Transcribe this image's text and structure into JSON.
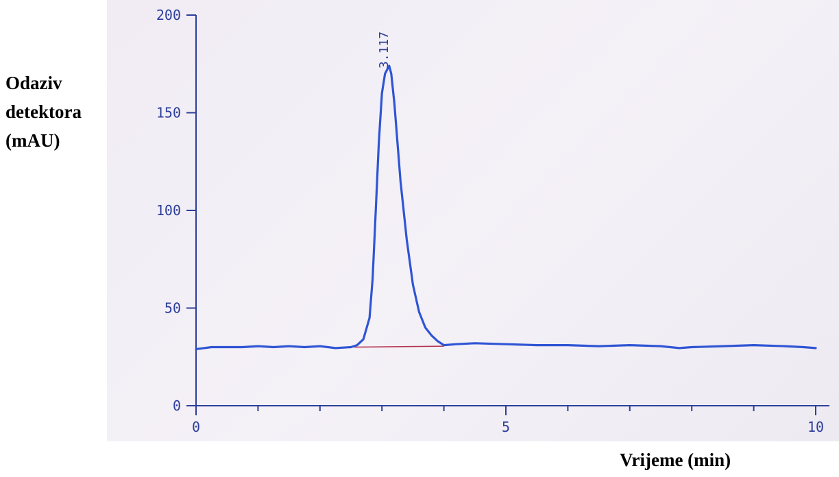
{
  "chart_data": {
    "type": "line",
    "ylabel_lines": [
      "Odaziv",
      "detektora",
      "(mAU)"
    ],
    "xlabel": "Vrijeme (min)",
    "xlim": [
      0,
      10
    ],
    "ylim": [
      0,
      200
    ],
    "x_ticks": [
      0,
      5,
      10
    ],
    "y_ticks": [
      0,
      50,
      100,
      150,
      200
    ],
    "x_minor_ticks": [
      1,
      2,
      3,
      4,
      6,
      7,
      8,
      9
    ],
    "grid": false,
    "colors": {
      "trace": "#2f55d4",
      "axis": "#2c3f9a",
      "baseline": "#b0304a"
    },
    "peak": {
      "label": "3.117",
      "x": 3.117,
      "y": 174
    },
    "baseline_segment": {
      "x": [
        2.55,
        4.0
      ],
      "y": [
        30,
        30.5
      ]
    },
    "series": [
      {
        "x": [
          0,
          0.25,
          0.5,
          0.75,
          1,
          1.25,
          1.5,
          1.75,
          2,
          2.25,
          2.5,
          2.6,
          2.7,
          2.8,
          2.85,
          2.9,
          2.95,
          3.0,
          3.05,
          3.1,
          3.117,
          3.15,
          3.2,
          3.25,
          3.3,
          3.4,
          3.5,
          3.6,
          3.7,
          3.8,
          3.9,
          4.0,
          4.2,
          4.5,
          5,
          5.5,
          6,
          6.5,
          7,
          7.5,
          7.8,
          8,
          8.5,
          9,
          9.5,
          9.8,
          10
        ],
        "y": [
          29,
          30,
          30,
          30,
          30.5,
          30,
          30.5,
          30,
          30.5,
          29.5,
          30,
          31,
          34,
          45,
          65,
          100,
          135,
          160,
          170,
          173,
          174,
          170,
          155,
          135,
          115,
          85,
          62,
          48,
          40,
          36,
          33,
          31,
          31.5,
          32,
          31.5,
          31,
          31,
          30.5,
          31,
          30.5,
          29.5,
          30,
          30.5,
          31,
          30.5,
          30,
          29.5
        ]
      }
    ]
  }
}
